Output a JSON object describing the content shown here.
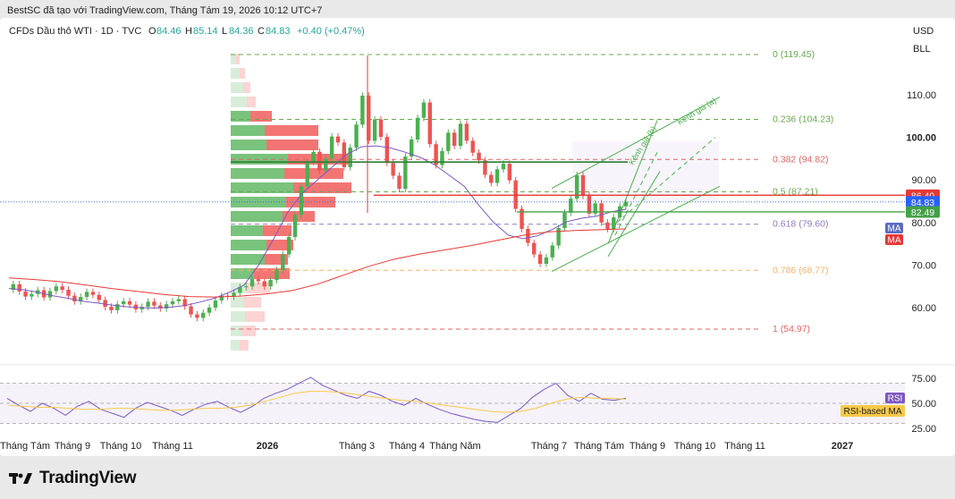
{
  "header": {
    "caption": "BestSC đã tạo với TradingView.com, Tháng Tám 19, 2026 10:12 UTC+7"
  },
  "symbol": {
    "name": "CFDs Dầu thô WTI · 1D · TVC",
    "o_label": "O",
    "o_value": "84.46",
    "h_label": "H",
    "h_value": "85.14",
    "l_label": "L",
    "l_value": "84.36",
    "c_label": "C",
    "c_value": "84.83",
    "change": "+0.40 (+0.47%)"
  },
  "currency": "USD",
  "unit": "BLL",
  "colors": {
    "up": "#4caf50",
    "down": "#ef5350",
    "ma_purple": "#7e57c2",
    "ma_red": "#e53935",
    "rsi": "#7e57c2",
    "rsi_ma": "#f7c948",
    "fib_green": "#6aa84f",
    "fib_red": "#e06666",
    "fib_purple": "#8e7cc3",
    "fib_orange": "#f6b26b",
    "channel": "#4caf50"
  },
  "price_axis": {
    "ticks": [
      "110.00",
      "100.00",
      "90.00",
      "80.00",
      "70.00",
      "60.00"
    ]
  },
  "price_labels": {
    "red": "86.40",
    "blue": "84.83",
    "green": "82.49"
  },
  "ma_tags": [
    "MA",
    "MA"
  ],
  "fib": [
    {
      "label": "0 (119.45)",
      "value": 119.45,
      "color": "#6aa84f"
    },
    {
      "label": "0.236 (104.23)",
      "value": 104.23,
      "color": "#6aa84f"
    },
    {
      "label": "0.382 (94.82)",
      "value": 94.82,
      "color": "#e06666"
    },
    {
      "label": "0.5 (87.21)",
      "value": 87.21,
      "color": "#6aa84f"
    },
    {
      "label": "0.618 (79.60)",
      "value": 79.6,
      "color": "#8e7cc3"
    },
    {
      "label": "0.786 (68.77)",
      "value": 68.77,
      "color": "#f6b26b"
    },
    {
      "label": "1 (54.97)",
      "value": 54.97,
      "color": "#e06666"
    }
  ],
  "channel_labels": [
    "Kênh giá (a)",
    "Kênh giá (b)"
  ],
  "rsi": {
    "ticks": [
      "75.00",
      "50.00",
      "25.00"
    ],
    "tag": "RSI",
    "ma_tag": "RSI-based MA"
  },
  "time_axis": [
    "Tháng Tám",
    "Tháng 9",
    "Tháng 10",
    "Tháng 11",
    "2026",
    "Tháng 3",
    "Tháng 4",
    "Tháng Năm",
    "Tháng 7",
    "Tháng Tám",
    "Tháng 9",
    "Tháng 10",
    "Tháng 11",
    "2027"
  ],
  "footer": {
    "brand": "TradingView"
  },
  "chart_data": {
    "type": "candlestick",
    "title": "CFDs Dầu thô WTI · 1D · TVC",
    "ylim": [
      52,
      122
    ],
    "price_series": [
      64.2,
      65.5,
      63.8,
      62.6,
      63.2,
      64.1,
      62.4,
      63.9,
      65.0,
      64.2,
      62.8,
      61.5,
      62.5,
      63.7,
      63.0,
      61.8,
      60.2,
      59.4,
      60.8,
      61.5,
      60.7,
      59.6,
      60.2,
      61.4,
      60.5,
      59.8,
      60.8,
      61.5,
      62.0,
      60.3,
      58.4,
      57.6,
      58.8,
      60.0,
      61.7,
      62.8,
      62.6,
      63.5,
      64.8,
      65.0,
      66.7,
      66.2,
      65.0,
      66.5,
      68.8,
      72.5,
      76.6,
      81.8,
      88.5,
      94.2,
      96.6,
      92.2,
      95.0,
      100.2,
      98.8,
      93.0,
      97.6,
      103.0,
      109.8,
      99.2,
      104.2,
      100.1,
      94.0,
      91.0,
      87.9,
      95.5,
      99.5,
      104.6,
      108.2,
      98.4,
      93.5,
      96.8,
      101.1,
      98.0,
      103.2,
      99.2,
      96.4,
      94.6,
      91.2,
      89.3,
      92.5,
      93.8,
      89.9,
      83.2,
      78.5,
      75.2,
      72.5,
      70.3,
      71.8,
      74.6,
      78.7,
      82.3,
      85.6,
      91.1,
      86.3,
      82.1,
      84.5,
      80.0,
      78.5,
      81.2,
      83.8,
      84.83
    ],
    "ma_short": [
      64.5,
      64.2,
      63.6,
      62.8,
      62.2,
      61.5,
      61.1,
      60.6,
      60.2,
      60.0,
      59.9,
      60.1,
      60.5,
      61.3,
      62.2,
      63.6,
      65.3,
      70.0,
      76.0,
      82.5,
      87.0,
      90.0,
      93.0,
      96.0,
      97.8,
      98.0,
      97.5,
      96.5,
      95.3,
      93.5,
      91.0,
      88.5,
      84.0,
      80.0,
      77.0,
      76.2,
      76.9,
      78.4,
      80.2,
      81.0,
      81.5,
      82.5,
      83.1
    ],
    "ma_long": [
      67.0,
      66.6,
      66.1,
      65.3,
      64.5,
      63.8,
      63.1,
      62.6,
      62.5,
      62.7,
      63.2,
      64.0,
      65.5,
      67.6,
      69.7,
      71.4,
      72.6,
      73.6,
      74.6,
      75.8,
      77.0,
      77.8,
      78.1,
      78.3,
      78.5
    ],
    "rsi": [
      55,
      48,
      42,
      50,
      45,
      38,
      47,
      52,
      44,
      40,
      36,
      45,
      51,
      47,
      43,
      38,
      44,
      49,
      52,
      46,
      41,
      47,
      55,
      60,
      64,
      70,
      76,
      68,
      63,
      58,
      55,
      62,
      58,
      52,
      48,
      55,
      49,
      44,
      40,
      37,
      34,
      32,
      31,
      38,
      45,
      56,
      64,
      70,
      58,
      52,
      60,
      54,
      53,
      55
    ],
    "rsi_ma": [
      48,
      47,
      46,
      46,
      45,
      44,
      44,
      45,
      45,
      44,
      43,
      43,
      44,
      45,
      45,
      46,
      48,
      52,
      56,
      60,
      62,
      62,
      61,
      59,
      57,
      55,
      53,
      52,
      50,
      48,
      46,
      44,
      42,
      41,
      42,
      45,
      50,
      54,
      56,
      55,
      55,
      54
    ],
    "fib_levels": [
      119.45,
      104.23,
      94.82,
      87.21,
      79.6,
      68.77,
      54.97
    ],
    "last_price": 84.83,
    "horizontal_levels": [
      86.4,
      82.49
    ],
    "rsi_ylim": [
      20,
      85
    ]
  }
}
